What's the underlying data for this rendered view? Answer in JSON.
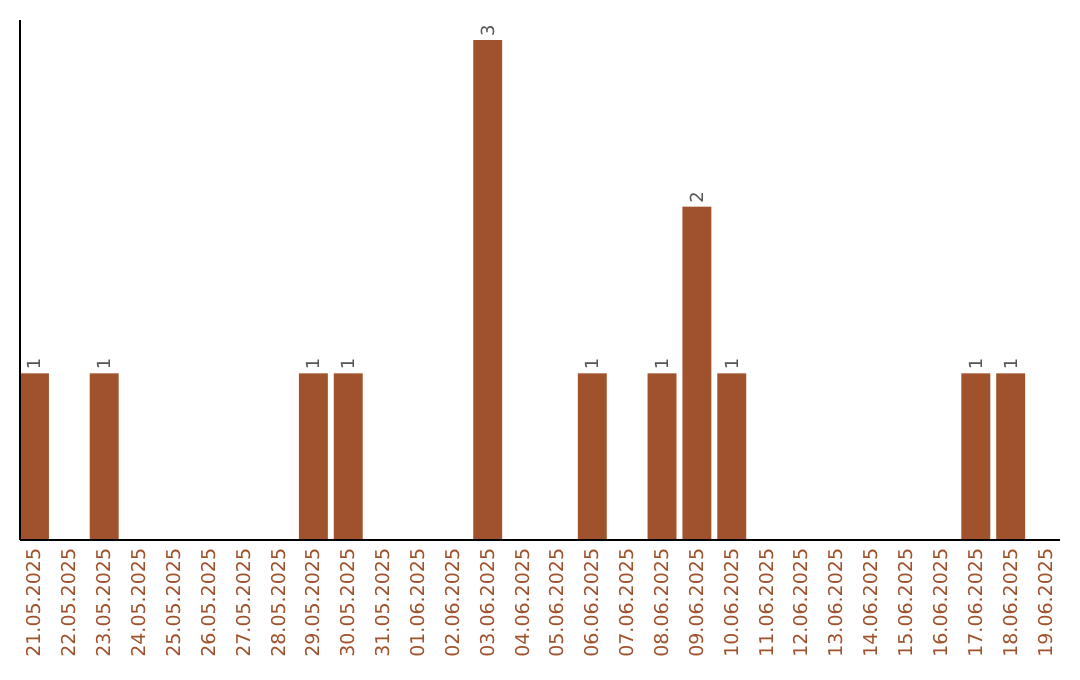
{
  "chart_data": {
    "type": "bar",
    "categories": [
      "21.05.2025",
      "22.05.2025",
      "23.05.2025",
      "24.05.2025",
      "25.05.2025",
      "26.05.2025",
      "27.05.2025",
      "28.05.2025",
      "29.05.2025",
      "30.05.2025",
      "31.05.2025",
      "01.06.2025",
      "02.06.2025",
      "03.06.2025",
      "04.06.2025",
      "05.06.2025",
      "06.06.2025",
      "07.06.2025",
      "08.06.2025",
      "09.06.2025",
      "10.06.2025",
      "11.06.2025",
      "12.06.2025",
      "13.06.2025",
      "14.06.2025",
      "15.06.2025",
      "16.06.2025",
      "17.06.2025",
      "18.06.2025",
      "19.06.2025"
    ],
    "values": [
      1,
      0,
      1,
      0,
      0,
      0,
      0,
      0,
      1,
      1,
      0,
      0,
      0,
      3,
      0,
      0,
      1,
      0,
      1,
      2,
      1,
      0,
      0,
      0,
      0,
      0,
      0,
      1,
      1,
      0
    ],
    "value_labels": [
      "1",
      null,
      "1",
      null,
      null,
      null,
      null,
      null,
      "1",
      "1",
      null,
      null,
      null,
      "3",
      null,
      null,
      "1",
      null,
      "1",
      "2",
      "1",
      null,
      null,
      null,
      null,
      null,
      null,
      "1",
      "1",
      null
    ],
    "color": "#a0522d",
    "ylim": [
      0,
      3.12
    ],
    "tick_labels": "x"
  }
}
